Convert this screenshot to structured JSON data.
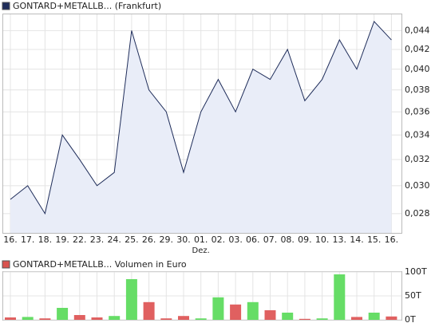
{
  "chart_data": [
    {
      "type": "area-line",
      "categories": [
        "16.",
        "17.",
        "18.",
        "19.",
        "22.",
        "23.",
        "24.",
        "25.",
        "26.",
        "29.",
        "30.",
        "01.",
        "02.",
        "03.",
        "06.",
        "07.",
        "08.",
        "09.",
        "10.",
        "13.",
        "14.",
        "15.",
        "16."
      ],
      "annotations": [
        {
          "text": "Dez.",
          "category_index": 11
        }
      ],
      "series": [
        {
          "name": "GONTARD+METALLB... (Frankfurt)",
          "color": "#1f2d5a",
          "fill": "#e9edf8",
          "values": [
            0.029,
            0.03,
            0.028,
            0.034,
            0.032,
            0.03,
            0.031,
            0.044,
            0.038,
            0.036,
            0.031,
            0.036,
            0.039,
            0.036,
            0.04,
            0.039,
            0.042,
            0.037,
            0.039,
            0.043,
            0.04,
            0.045,
            0.043
          ]
        }
      ],
      "log_scale": true,
      "ylim": [
        0.0267,
        0.0458
      ],
      "yticks": [
        {
          "value": 0.028,
          "label": "0,028"
        },
        {
          "value": 0.03,
          "label": "0,030"
        },
        {
          "value": 0.032,
          "label": "0,032"
        },
        {
          "value": 0.034,
          "label": "0,034"
        },
        {
          "value": 0.036,
          "label": "0,036"
        },
        {
          "value": 0.038,
          "label": "0,038"
        },
        {
          "value": 0.04,
          "label": "0,040"
        },
        {
          "value": 0.042,
          "label": "0,042"
        },
        {
          "value": 0.044,
          "label": "0,044"
        }
      ],
      "grid": true
    },
    {
      "type": "bar",
      "series": [
        {
          "name": "GONTARD+METALLB... Volumen in Euro",
          "color": "#d9534f",
          "values": [
            5,
            6,
            3,
            25,
            10,
            5,
            8,
            85,
            37,
            3,
            8,
            3,
            47,
            32,
            37,
            20,
            15,
            2,
            3,
            95,
            6,
            15,
            7
          ],
          "bar_colors": [
            "#e06060",
            "#66dd66",
            "#e06060",
            "#66dd66",
            "#e06060",
            "#e06060",
            "#66dd66",
            "#66dd66",
            "#e06060",
            "#e06060",
            "#e06060",
            "#66dd66",
            "#66dd66",
            "#e06060",
            "#66dd66",
            "#e06060",
            "#66dd66",
            "#e06060",
            "#66dd66",
            "#66dd66",
            "#e06060",
            "#66dd66",
            "#e06060"
          ]
        }
      ],
      "ylim": [
        0,
        100
      ],
      "yticks": [
        {
          "value": 0,
          "label": "0T"
        },
        {
          "value": 50,
          "label": "50T"
        },
        {
          "value": 100,
          "label": "100T"
        }
      ],
      "grid": true
    }
  ]
}
